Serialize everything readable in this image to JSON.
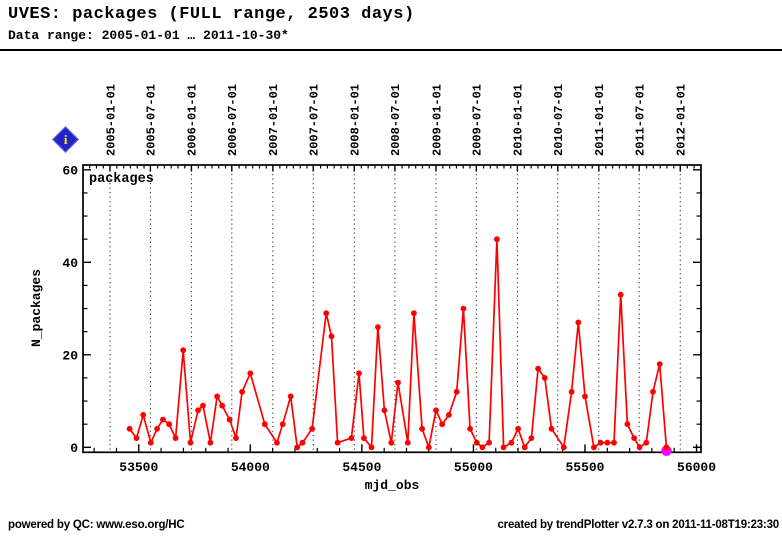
{
  "header": {
    "title": "UVES: packages (FULL range, 2503 days)",
    "subtitle": "Data range: 2005-01-01 … 2011-10-30*"
  },
  "info_icon": {
    "label": "i"
  },
  "footer": {
    "left": "powered by QC: www.eso.org/HC",
    "right": "created by trendPlotter v2.7.3 on 2011-11-08T19:23:30"
  },
  "colors": {
    "series": "#ff0000",
    "highlight": "#ff00ff",
    "axis": "#000000",
    "grid": "#2a2a2a",
    "icon_blue": "#2323c8",
    "icon_yellow": "#ffee00"
  },
  "chart_data": {
    "type": "line",
    "title": "packages",
    "xlabel": "mjd_obs",
    "ylabel": "N_packages",
    "xlim": [
      53250,
      56020
    ],
    "ylim": [
      -1,
      61
    ],
    "grid": "vertical-dotted-halfyear",
    "legend_position": "top-left-inside",
    "x_ticks": [
      53500,
      54000,
      54500,
      55000,
      55500,
      56000
    ],
    "x_minor_step": 100,
    "y_ticks": [
      0,
      20,
      40,
      60
    ],
    "y_minor_step": 5,
    "top_axis_dates": [
      {
        "label": "2005-01-01",
        "mjd": 53371
      },
      {
        "label": "2005-07-01",
        "mjd": 53552
      },
      {
        "label": "2006-01-01",
        "mjd": 53736
      },
      {
        "label": "2006-07-01",
        "mjd": 53917
      },
      {
        "label": "2007-01-01",
        "mjd": 54101
      },
      {
        "label": "2007-07-01",
        "mjd": 54282
      },
      {
        "label": "2008-01-01",
        "mjd": 54466
      },
      {
        "label": "2008-07-01",
        "mjd": 54648
      },
      {
        "label": "2009-01-01",
        "mjd": 54832
      },
      {
        "label": "2009-07-01",
        "mjd": 55013
      },
      {
        "label": "2010-01-01",
        "mjd": 55197
      },
      {
        "label": "2010-07-01",
        "mjd": 55378
      },
      {
        "label": "2011-01-01",
        "mjd": 55562
      },
      {
        "label": "2011-07-01",
        "mjd": 55743
      },
      {
        "label": "2012-01-01",
        "mjd": 55927
      }
    ],
    "series": [
      {
        "name": "packages",
        "color": "#ff0000",
        "points": [
          [
            53459,
            4
          ],
          [
            53490,
            2
          ],
          [
            53520,
            7
          ],
          [
            53554,
            1
          ],
          [
            53582,
            4
          ],
          [
            53608,
            6
          ],
          [
            53636,
            5
          ],
          [
            53665,
            2
          ],
          [
            53699,
            21
          ],
          [
            53732,
            1
          ],
          [
            53766,
            8
          ],
          [
            53788,
            9
          ],
          [
            53821,
            1
          ],
          [
            53851,
            11
          ],
          [
            53874,
            9
          ],
          [
            53907,
            6
          ],
          [
            53936,
            2
          ],
          [
            53963,
            12
          ],
          [
            54000,
            16
          ],
          [
            54065,
            5
          ],
          [
            54119,
            1
          ],
          [
            54145,
            5
          ],
          [
            54181,
            11
          ],
          [
            54210,
            0
          ],
          [
            54234,
            1
          ],
          [
            54277,
            4
          ],
          [
            54340,
            29
          ],
          [
            54364,
            24
          ],
          [
            54391,
            1
          ],
          [
            54453,
            2
          ],
          [
            54487,
            16
          ],
          [
            54509,
            2
          ],
          [
            54543,
            0
          ],
          [
            54572,
            26
          ],
          [
            54601,
            8
          ],
          [
            54632,
            1
          ],
          [
            54662,
            14
          ],
          [
            54706,
            1
          ],
          [
            54733,
            29
          ],
          [
            54770,
            4
          ],
          [
            54800,
            0
          ],
          [
            54832,
            8
          ],
          [
            54860,
            5
          ],
          [
            54890,
            7
          ],
          [
            54925,
            12
          ],
          [
            54955,
            30
          ],
          [
            54985,
            4
          ],
          [
            55015,
            1
          ],
          [
            55040,
            0
          ],
          [
            55070,
            1
          ],
          [
            55105,
            45
          ],
          [
            55135,
            0
          ],
          [
            55170,
            1
          ],
          [
            55200,
            4
          ],
          [
            55230,
            0
          ],
          [
            55260,
            2
          ],
          [
            55290,
            17
          ],
          [
            55320,
            15
          ],
          [
            55350,
            4
          ],
          [
            55405,
            0
          ],
          [
            55440,
            12
          ],
          [
            55470,
            27
          ],
          [
            55500,
            11
          ],
          [
            55540,
            0
          ],
          [
            55570,
            1
          ],
          [
            55600,
            1
          ],
          [
            55630,
            1
          ],
          [
            55660,
            33
          ],
          [
            55690,
            5
          ],
          [
            55720,
            2
          ],
          [
            55745,
            0
          ],
          [
            55775,
            1
          ],
          [
            55805,
            12
          ],
          [
            55835,
            18
          ],
          [
            55865,
            0
          ]
        ]
      }
    ],
    "highlight_point": {
      "mjd": 55865,
      "value": 0,
      "color": "#ff00ff",
      "meaning": "last-period-marker"
    }
  }
}
